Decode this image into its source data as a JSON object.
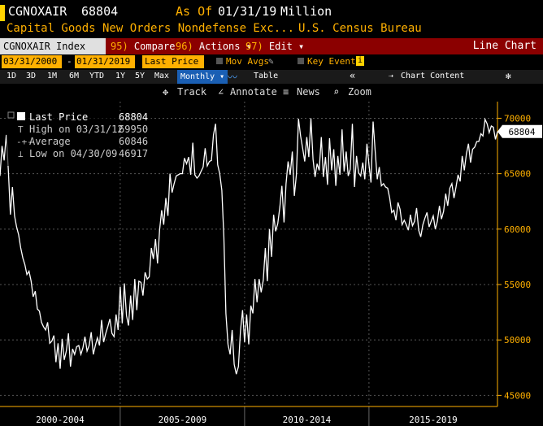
{
  "header": {
    "ticker": "CGNOXAIR",
    "last_value": "68804",
    "as_of_label": "As Of",
    "as_of_date": "01/31/19",
    "unit": "Million",
    "description": "Capital Goods New Orders Nondefense Exc...",
    "source": "U.S. Census Bureau"
  },
  "toolbar": {
    "index_label": "CGNOXAIR Index",
    "compare": {
      "key": "95)",
      "label": "Compare"
    },
    "actions": {
      "key": "96)",
      "label": "Actions ▾"
    },
    "edit": {
      "key": "97)",
      "label": "Edit ▾"
    },
    "chart_type": "Line Chart"
  },
  "range": {
    "start_date": "03/31/2000",
    "end_date": "01/31/2019",
    "price_field": "Last Price",
    "mov_avgs": "Mov Avgs",
    "key_events": "Key Events"
  },
  "periods": [
    "1D",
    "3D",
    "1M",
    "6M",
    "YTD",
    "1Y",
    "5Y",
    "Max"
  ],
  "frequency": "Monthly ▾",
  "table_label": "Table",
  "chart_content_label": "Chart Content",
  "tools": {
    "track": "Track",
    "annotate": "Annotate",
    "news": "News",
    "zoom": "Zoom"
  },
  "legend": {
    "last_price": {
      "label": "Last Price",
      "value": "68804"
    },
    "high": {
      "label": "High on 03/31/12",
      "value": "69950"
    },
    "average": {
      "label": "Average",
      "value": "60846"
    },
    "low": {
      "label": "Low on 04/30/09",
      "value": "46917"
    }
  },
  "colors": {
    "line": "#ffffff",
    "axis": "#ffb000",
    "header": "#ffb000",
    "toolbar": "#8b0000"
  },
  "chart_data": {
    "type": "line",
    "title": "",
    "xlabel": "",
    "ylabel": "",
    "ylim": [
      44000,
      71500
    ],
    "yticks": [
      45000,
      50000,
      55000,
      60000,
      65000,
      70000
    ],
    "period_labels": [
      "2000-2004",
      "2005-2009",
      "2010-2014",
      "2015-2019"
    ],
    "last_value_tag": "68804",
    "grid": true,
    "series": [
      {
        "name": "Last Price",
        "x_start": "2000-03",
        "frequency": "monthly",
        "values": [
          64800,
          67500,
          66200,
          68500,
          65400,
          61300,
          63800,
          61200,
          60200,
          59500,
          58300,
          57400,
          56800,
          55900,
          56200,
          55300,
          53900,
          54400,
          52800,
          52600,
          51600,
          51200,
          50900,
          51600,
          49700,
          49900,
          50400,
          48000,
          49700,
          47400,
          50100,
          48200,
          49000,
          50600,
          47600,
          49200,
          48700,
          49400,
          49500,
          48700,
          49300,
          50300,
          49000,
          49500,
          50700,
          48700,
          49500,
          50200,
          49500,
          51800,
          49800,
          50600,
          51200,
          51900,
          50600,
          50300,
          52300,
          50900,
          54800,
          51500,
          55100,
          52200,
          51300,
          54000,
          51800,
          55500,
          52700,
          55300,
          55200,
          54000,
          56100,
          55500,
          55700,
          58300,
          57300,
          59100,
          56900,
          59900,
          61700,
          60400,
          62800,
          61200,
          65000,
          63300,
          64100,
          64800,
          64900,
          65000,
          65000,
          66400,
          65900,
          66500,
          64900,
          67800,
          64900,
          64600,
          64800,
          65200,
          65600,
          67300,
          65700,
          66100,
          66200,
          68500,
          69500,
          65800,
          65000,
          63500,
          59300,
          52400,
          49600,
          48700,
          50900,
          47800,
          46917,
          47600,
          50800,
          52700,
          49800,
          52300,
          49600,
          53100,
          52400,
          55500,
          53400,
          55500,
          54300,
          55400,
          58300,
          55300,
          60000,
          57500,
          61300,
          59800,
          60500,
          62000,
          63900,
          60600,
          64100,
          66100,
          64900,
          67000,
          63000,
          64900,
          69950,
          68400,
          67300,
          66100,
          68300,
          66500,
          70000,
          66300,
          64700,
          65900,
          65300,
          68300,
          64700,
          66500,
          64000,
          68200,
          65300,
          67200,
          63900,
          66600,
          64900,
          69000,
          65200,
          67000,
          64800,
          65400,
          69500,
          63800,
          66600,
          65100,
          64800,
          66000,
          64500,
          67700,
          65800,
          64200,
          69700,
          67000,
          64500,
          65600,
          63900,
          64100,
          63800,
          63700,
          62800,
          61500,
          61700,
          60800,
          62400,
          61800,
          60400,
          60800,
          60400,
          59900,
          61300,
          60300,
          60700,
          61900,
          59900,
          59300,
          60400,
          61000,
          61500,
          60200,
          60700,
          61200,
          60000,
          60700,
          62100,
          60900,
          61600,
          63200,
          62100,
          63700,
          64100,
          62800,
          63800,
          64900,
          64300,
          66600,
          65300,
          66800,
          67700,
          66000,
          67200,
          67400,
          67900,
          67900,
          68600,
          68400,
          69900,
          69500,
          68700,
          69300,
          69200,
          68100,
          68804
        ]
      }
    ]
  }
}
